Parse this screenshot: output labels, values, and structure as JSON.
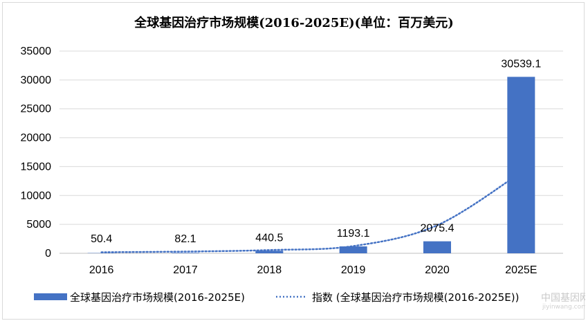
{
  "chart_data": {
    "type": "bar",
    "title": "全球基因治疗市场规模(2016-2025E)(单位：百万美元)",
    "categories": [
      "2016",
      "2017",
      "2018",
      "2019",
      "2020",
      "2025E"
    ],
    "series": [
      {
        "name": "全球基因治疗市场规模(2016-2025E)",
        "type": "bar",
        "values": [
          50.4,
          82.1,
          440.5,
          1193.1,
          2075.4,
          30539.1
        ],
        "data_labels": [
          "50.4",
          "82.1",
          "440.5",
          "1193.1",
          "2075.4",
          "30539.1"
        ],
        "color": "#4472c4"
      },
      {
        "name": "指数 (全球基因治疗市场规模(2016-2025E))",
        "type": "trendline-exponential",
        "values": [
          180,
          300,
          560,
          1250,
          4850,
          14000
        ],
        "style": "dotted",
        "color": "#4472c4"
      }
    ],
    "ylim": [
      0,
      35000
    ],
    "yticks": [
      "0",
      "5000",
      "10000",
      "15000",
      "20000",
      "25000",
      "30000",
      "35000"
    ],
    "xlabel": "",
    "ylabel": "",
    "grid": true,
    "legend_position": "bottom"
  },
  "watermark": {
    "text": "中国基因网",
    "url": "jiyinwang.com"
  }
}
